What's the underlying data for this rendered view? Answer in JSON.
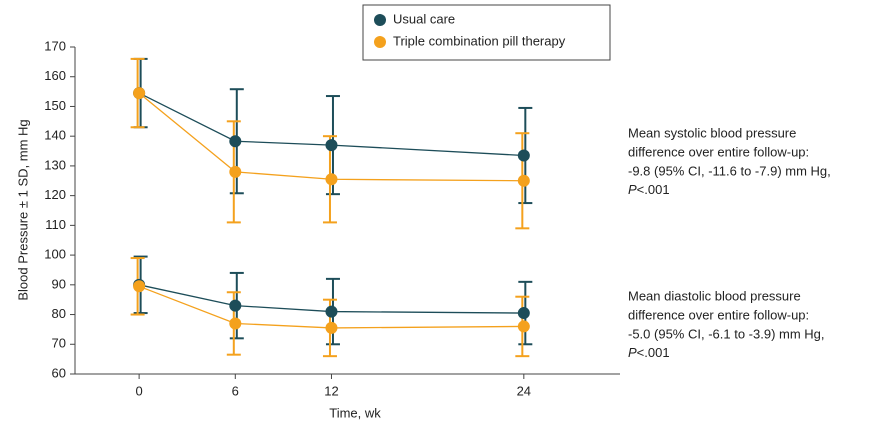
{
  "chart_data": {
    "type": "line",
    "x_label": "Time, wk",
    "y_label": "Blood Pressure ± 1 SD, mm Hg",
    "x": [
      0,
      6,
      12,
      24
    ],
    "xlim": [
      -4,
      30
    ],
    "xticks": [
      0,
      6,
      12,
      24
    ],
    "ylim": [
      60,
      170
    ],
    "yticks": [
      60,
      70,
      80,
      90,
      100,
      110,
      120,
      130,
      140,
      150,
      160,
      170
    ],
    "legend": "top",
    "series": [
      {
        "name": "Usual care",
        "color": "#1d4d59",
        "systolic": {
          "values": [
            154.5,
            138.3,
            137,
            133.5
          ],
          "errors": [
            11.5,
            17.5,
            16.5,
            16
          ]
        },
        "diastolic": {
          "values": [
            90,
            83,
            81,
            80.5
          ],
          "errors": [
            9.5,
            11,
            11,
            10.5
          ]
        }
      },
      {
        "name": "Triple combination pill therapy",
        "color": "#f4a11d",
        "systolic": {
          "values": [
            154.5,
            128,
            125.5,
            125
          ],
          "errors": [
            11.5,
            17,
            14.5,
            16
          ]
        },
        "diastolic": {
          "values": [
            89.5,
            77,
            75.5,
            76
          ],
          "errors": [
            9.5,
            10.5,
            9.5,
            10
          ]
        }
      }
    ],
    "annotations": [
      {
        "lines": [
          "Mean systolic blood pressure",
          "difference over entire follow-up:",
          "-9.8 (95% CI, -11.6 to -7.9) mm Hg,"
        ],
        "p_label": "P",
        "p_value": "<.001"
      },
      {
        "lines": [
          "Mean diastolic blood pressure",
          "difference over entire follow-up:",
          "-5.0 (95% CI, -6.1 to -3.9) mm Hg,"
        ],
        "p_label": "P",
        "p_value": "<.001"
      }
    ]
  }
}
